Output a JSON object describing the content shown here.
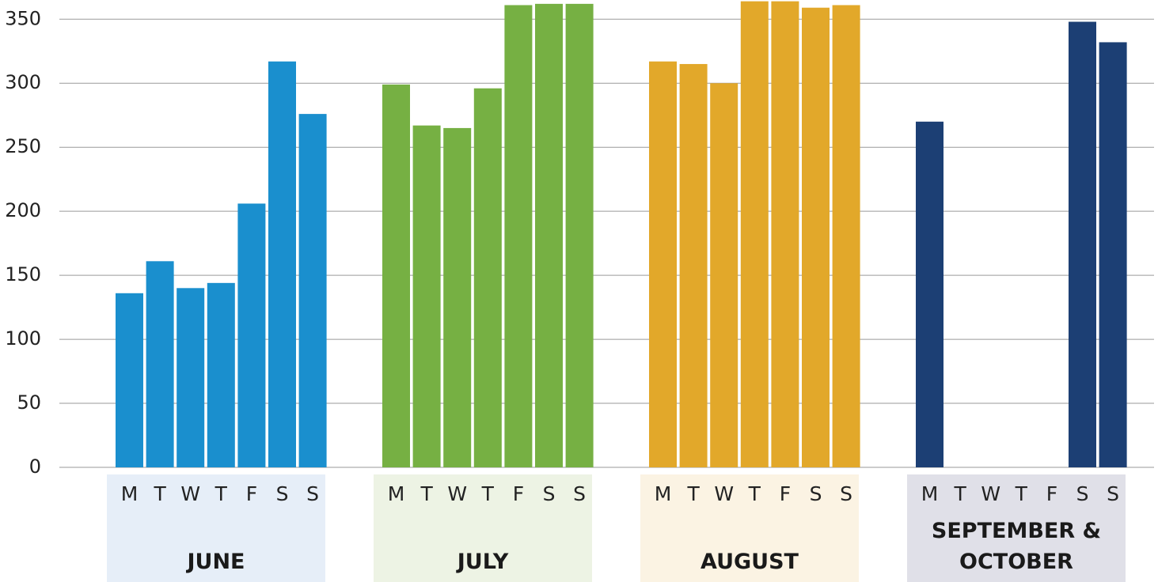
{
  "chart_data": {
    "type": "bar",
    "ylim": [
      0,
      365
    ],
    "yticks": [
      0,
      50,
      100,
      150,
      200,
      250,
      300,
      350
    ],
    "grid": true,
    "groups": [
      {
        "name": "JUNE",
        "color": "#1a8fce",
        "background": "#e6eef8",
        "categories": [
          "M",
          "T",
          "W",
          "T",
          "F",
          "S",
          "S"
        ],
        "values": [
          136,
          161,
          140,
          144,
          206,
          317,
          276
        ]
      },
      {
        "name": "JULY",
        "color": "#76b043",
        "background": "#edf3e4",
        "categories": [
          "M",
          "T",
          "W",
          "T",
          "F",
          "S",
          "S"
        ],
        "values": [
          299,
          267,
          265,
          296,
          361,
          362,
          362
        ]
      },
      {
        "name": "AUGUST",
        "color": "#e2a82a",
        "background": "#fbf3e3",
        "categories": [
          "M",
          "T",
          "W",
          "T",
          "F",
          "S",
          "S"
        ],
        "values": [
          317,
          315,
          300,
          364,
          364,
          359,
          361
        ]
      },
      {
        "name": "SEPTEMBER & OCTOBER",
        "color": "#1c3f74",
        "background": "#e0e0e8",
        "categories": [
          "M",
          "T",
          "W",
          "T",
          "F",
          "S",
          "S"
        ],
        "values": [
          270,
          null,
          null,
          null,
          null,
          348,
          332
        ]
      }
    ]
  }
}
